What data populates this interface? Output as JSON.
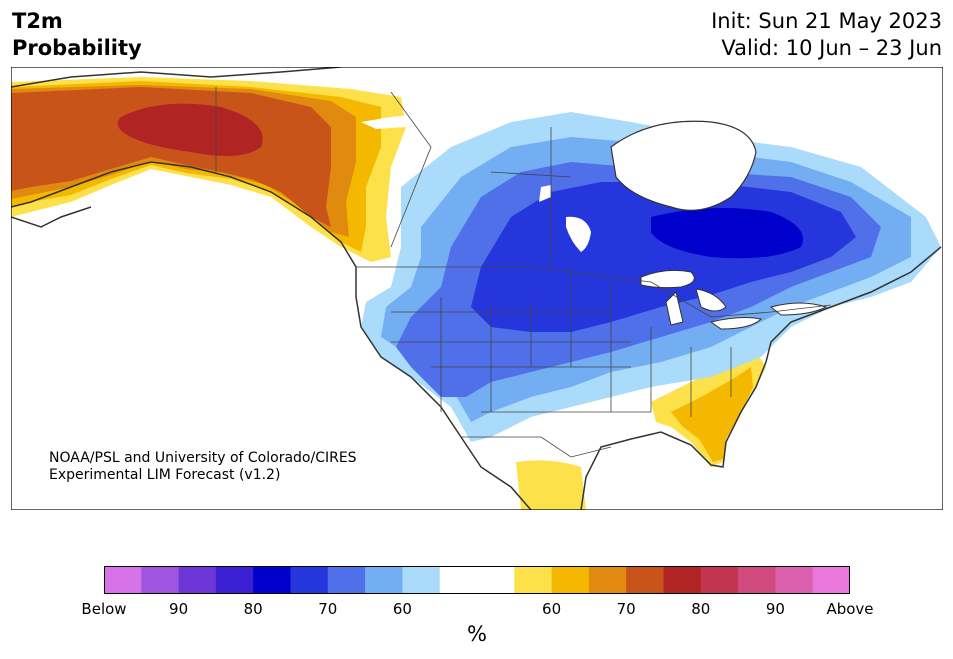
{
  "header": {
    "variable": "T2m",
    "product": "Probability",
    "init": "Init: Sun 21 May 2023",
    "valid": "Valid: 10 Jun – 23 Jun"
  },
  "credit": {
    "line1": "NOAA/PSL and University of Colorado/CIRES",
    "line2": "Experimental LIM Forecast (v1.2)"
  },
  "colorbar": {
    "colors": [
      "#d673e8",
      "#9f55df",
      "#6e36d6",
      "#3a1fd3",
      "#0000cc",
      "#2436dc",
      "#4f70e8",
      "#74aef2",
      "#abdbfb",
      "#ffffff",
      "#ffffff",
      "#fde14b",
      "#f5b800",
      "#e08a10",
      "#c8541a",
      "#b02424",
      "#c23550",
      "#d04a7e",
      "#dc5fad",
      "#e878dc"
    ],
    "tick_labels": [
      "Below",
      "90",
      "80",
      "70",
      "60",
      "60",
      "70",
      "80",
      "90",
      "Above"
    ],
    "unit": "%"
  },
  "map": {
    "colors": {
      "ocean": "#ffffff",
      "land": "#ffffff",
      "coast": "#333333",
      "border": "#555555"
    }
  }
}
